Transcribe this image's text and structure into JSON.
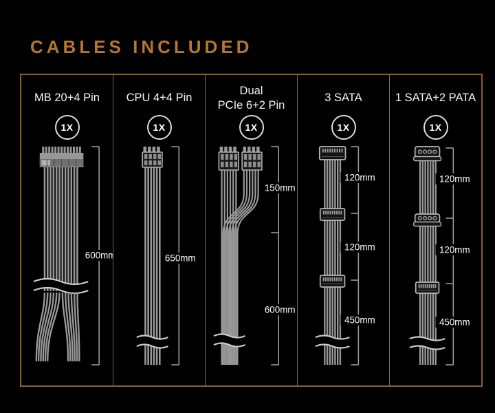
{
  "title": {
    "text": "CABLES INCLUDED"
  },
  "colors": {
    "background": "#000000",
    "title_accent": "#b5772e",
    "frame_border": "#8f5e2c",
    "panel_divider": "#6e6e6e",
    "cable_gray": "#989898",
    "label_text": "#ffffff",
    "panel_text": "#f5f5f5"
  },
  "panels": [
    {
      "id": "mb-20-4-pin",
      "title_lines": [
        "MB 20+4 Pin"
      ],
      "qty": "1X",
      "cable_type": "atx24",
      "measurements": [
        {
          "label": "600mm"
        }
      ]
    },
    {
      "id": "cpu-4-4-pin",
      "title_lines": [
        "CPU 4+4 Pin"
      ],
      "qty": "1X",
      "cable_type": "eps8",
      "measurements": [
        {
          "label": "650mm"
        }
      ]
    },
    {
      "id": "dual-pcie-6-2-pin",
      "title_lines": [
        "Dual",
        "PCIe 6+2 Pin"
      ],
      "qty": "1X",
      "cable_type": "dual_pcie",
      "measurements": [
        {
          "label": "150mm"
        },
        {
          "label": "600mm"
        }
      ]
    },
    {
      "id": "3-sata",
      "title_lines": [
        "3 SATA"
      ],
      "qty": "1X",
      "cable_type": "sata_x3",
      "measurements": [
        {
          "label": "120mm"
        },
        {
          "label": "120mm"
        },
        {
          "label": "450mm"
        }
      ]
    },
    {
      "id": "1-sata-2-pata",
      "title_lines": [
        "1 SATA+2 PATA"
      ],
      "qty": "1X",
      "cable_type": "pata_sata",
      "measurements": [
        {
          "label": "120mm"
        },
        {
          "label": "120mm"
        },
        {
          "label": "450mm"
        }
      ]
    }
  ]
}
